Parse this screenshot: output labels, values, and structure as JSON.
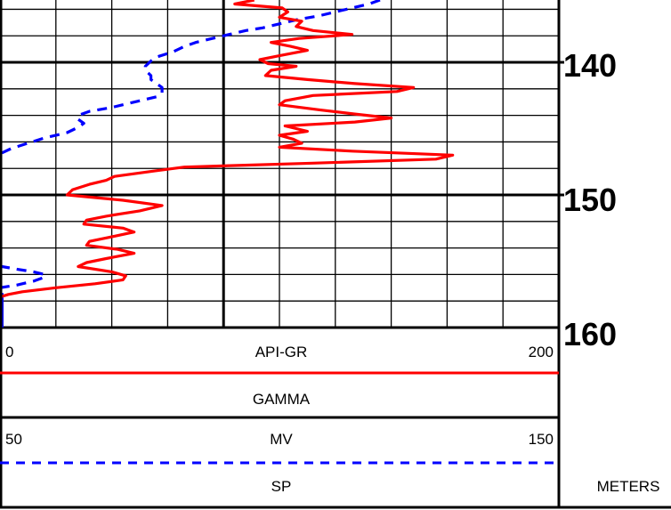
{
  "chart_data": {
    "type": "line",
    "title": "",
    "depth": {
      "units": "METERS",
      "tick_labels": [
        "140",
        "150",
        "160"
      ],
      "range": [
        135.3,
        160
      ]
    },
    "gamma_track": {
      "name": "GAMMA",
      "units": "API-GR",
      "scale_left": "0",
      "scale_right": "200",
      "range": [
        0,
        200
      ],
      "color": "#ff0000",
      "line_style": "solid"
    },
    "sp_track": {
      "name": "SP",
      "units": "MV",
      "scale_left": "50",
      "scale_right": "150",
      "range": [
        50,
        150
      ],
      "color": "#0000ff",
      "line_style": "dashed"
    },
    "grid": true,
    "series": [
      {
        "name": "GAMMA",
        "depth": [
          135.3,
          135.6,
          135.9,
          136.2,
          136.6,
          136.9,
          137.3,
          137.6,
          137.9,
          138.2,
          138.5,
          138.8,
          139.1,
          139.5,
          139.8,
          140.1,
          140.3,
          140.6,
          141.0,
          141.3,
          141.6,
          141.9,
          142.2,
          142.5,
          142.9,
          143.2,
          143.6,
          143.9,
          144.2,
          144.5,
          144.8,
          145.2,
          145.5,
          145.8,
          146.1,
          146.4,
          146.7,
          147.0,
          147.3,
          147.6,
          147.9,
          148.2,
          148.6,
          148.9,
          149.2,
          149.6,
          150.0,
          150.4,
          150.8,
          151.2,
          151.6,
          151.9,
          152.2,
          152.5,
          152.8,
          153.2,
          153.5,
          153.8,
          154.1,
          154.4,
          154.8,
          155.1,
          155.4,
          155.8,
          156.1,
          156.4,
          156.7,
          157.0,
          157.3,
          157.5,
          157.7,
          157.9,
          158.0
        ],
        "values": [
          91,
          84,
          101,
          103,
          100,
          108,
          106,
          112,
          126,
          107,
          97,
          104,
          110,
          100,
          93,
          96,
          106,
          97,
          95,
          110,
          127,
          148,
          142,
          112,
          102,
          100,
          115,
          127,
          140,
          127,
          102,
          110,
          100,
          105,
          108,
          100,
          126,
          162,
          156,
          112,
          66,
          55,
          41,
          38,
          32,
          26,
          24,
          44,
          58,
          50,
          38,
          31,
          30,
          44,
          48,
          39,
          32,
          31,
          42,
          48,
          38,
          31,
          28,
          40,
          45,
          44,
          34,
          20,
          8,
          3,
          0,
          0,
          0
        ]
      },
      {
        "name": "SP",
        "depth": [
          135.3,
          135.6,
          135.9,
          136.2,
          136.5,
          136.8,
          137.1,
          137.4,
          137.6,
          137.9,
          138.2,
          138.5,
          138.8,
          139.2,
          139.6,
          139.9,
          140.3,
          140.6,
          141.0,
          141.3,
          141.6,
          141.9,
          142.3,
          142.6,
          142.8,
          143.1,
          143.4,
          143.7,
          144.0,
          144.3,
          144.6,
          144.9,
          145.3,
          145.7,
          146.1,
          146.5,
          146.9,
          147.3,
          147.7,
          148.2,
          148.7,
          149.2,
          149.8,
          150.4,
          151.0,
          151.6,
          152.2,
          152.8,
          153.3,
          153.7,
          154.1,
          154.5,
          154.9,
          155.3,
          155.6,
          155.8,
          156.0,
          156.2,
          156.5,
          156.8,
          157.0,
          157.2,
          157.4,
          157.6,
          157.8
        ],
        "values": [
          118,
          116,
          113,
          110,
          107,
          103,
          100,
          97,
          94,
          91,
          88,
          85,
          83,
          81,
          78,
          77,
          76,
          76,
          77,
          77,
          78,
          79,
          79,
          78,
          76,
          73,
          70,
          66,
          64,
          64,
          65,
          64,
          62,
          58,
          55,
          52,
          50,
          47,
          45,
          43,
          41,
          39,
          37,
          35,
          34,
          34,
          35,
          36,
          36,
          37,
          38,
          41,
          45,
          49,
          53,
          56,
          58,
          58,
          56,
          53,
          50,
          50,
          50,
          50,
          50
        ]
      }
    ]
  }
}
